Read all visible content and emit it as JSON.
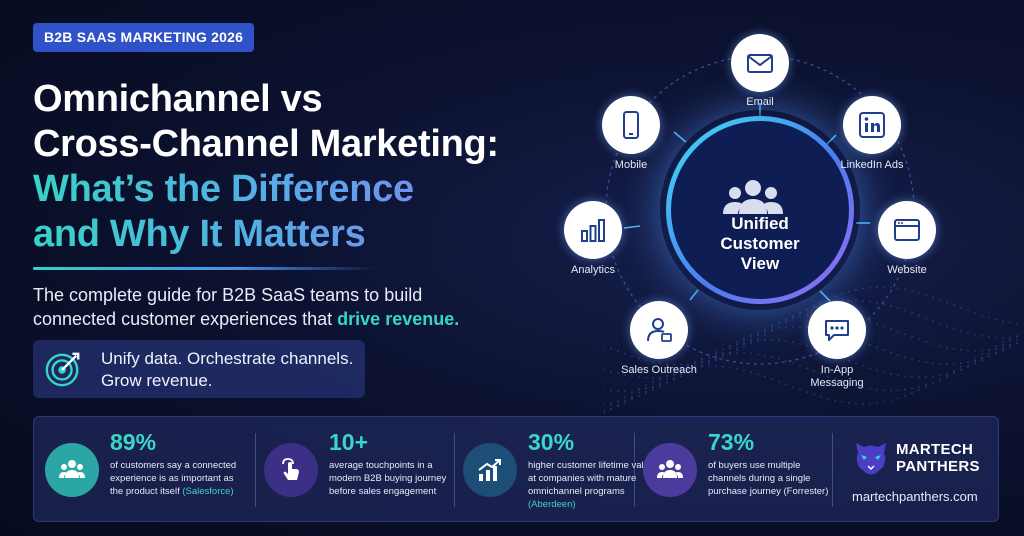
{
  "badge": "B2B SAAS MARKETING 2026",
  "title": {
    "line1": "Omnichannel vs",
    "line2": "Cross-Channel Marketing:",
    "line3": "What’s the Difference",
    "line4": "and Why It Matters"
  },
  "subtitle": {
    "text": "The complete guide for B2B SaaS teams to build connected customer experiences that ",
    "highlight": "drive revenue."
  },
  "tagline": {
    "line1": "Unify data. Orchestrate channels.",
    "line2": "Grow revenue.",
    "icon": "target-icon"
  },
  "diagram": {
    "hub": {
      "line1": "Unified",
      "line2": "Customer",
      "line3": "View",
      "icon": "users-icon"
    },
    "channels": [
      {
        "label": "Email",
        "icon": "envelope-icon"
      },
      {
        "label": "LinkedIn Ads",
        "icon": "linkedin-icon"
      },
      {
        "label": "Website",
        "icon": "browser-icon"
      },
      {
        "label": "In-App",
        "label2": "Messaging",
        "icon": "chat-icon"
      },
      {
        "label": "Sales Outreach",
        "icon": "sales-rep-icon"
      },
      {
        "label": "Analytics",
        "icon": "bar-chart-icon"
      },
      {
        "label": "Mobile",
        "icon": "phone-icon"
      }
    ],
    "colors": {
      "accent": "#36d6c6",
      "node_icon": "#1f3f8c"
    }
  },
  "stats": [
    {
      "value": "89%",
      "desc": "of customers say a connected experience is as important as the product itself ",
      "source": "(Salesforce)",
      "icon": "users-icon"
    },
    {
      "value": "10+",
      "desc": "average touchpoints in a modern B2B buying journey before sales engagement",
      "source": "",
      "icon": "touch-icon"
    },
    {
      "value": "30%",
      "desc": "higher customer lifetime value at companies with mature omnichannel programs ",
      "source": "(Aberdeen)",
      "icon": "growth-chart-icon"
    },
    {
      "value": "73%",
      "desc": "of buyers use multiple channels during a single purchase journey (Forrester)",
      "source": "",
      "icon": "users-icon"
    }
  ],
  "brand": {
    "line1": "MARTECH",
    "line2": "PANTHERS",
    "url": "martechpanthers.com",
    "icon": "panther-logo-icon"
  }
}
